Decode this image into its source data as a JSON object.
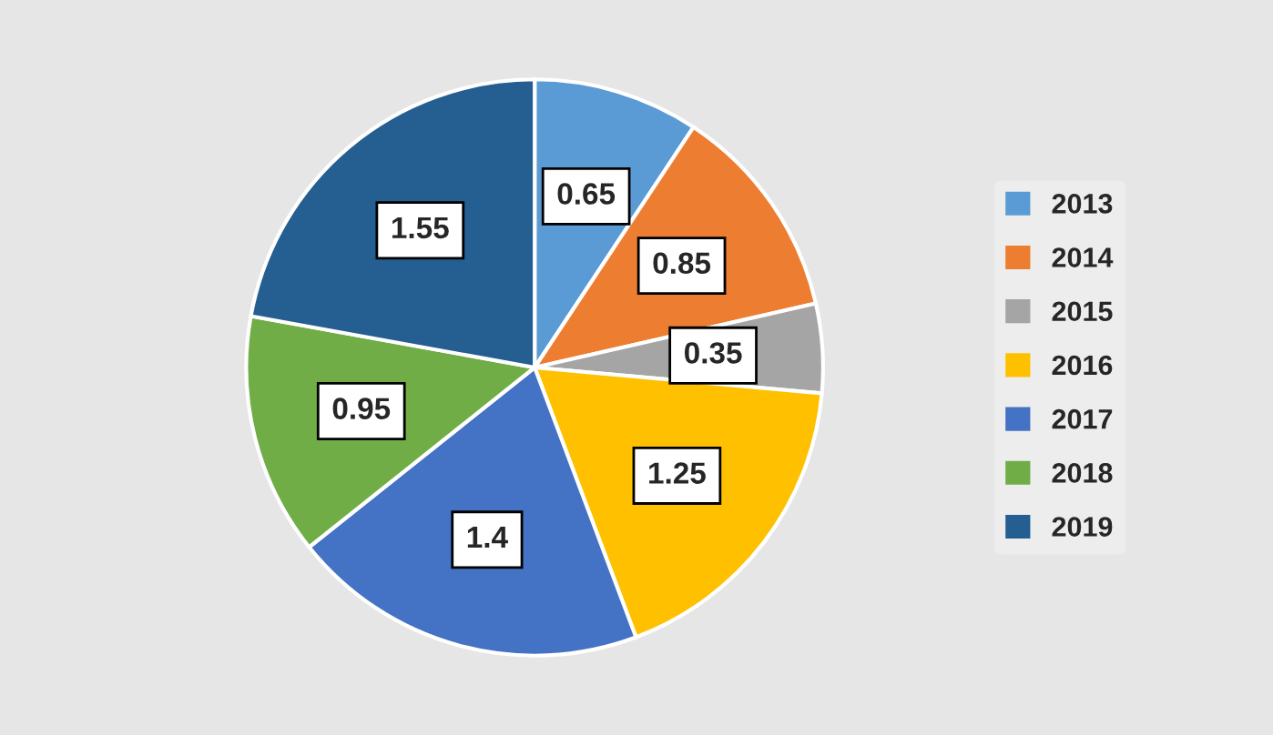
{
  "chart_data": {
    "type": "pie",
    "categories": [
      "2013",
      "2014",
      "2015",
      "2016",
      "2017",
      "2018",
      "2019"
    ],
    "values": [
      0.65,
      0.85,
      0.35,
      1.25,
      1.4,
      0.95,
      1.55
    ],
    "colors": [
      "#5b9bd5",
      "#ed7d31",
      "#a5a5a5",
      "#ffc000",
      "#4472c4",
      "#70ad47",
      "#255e91"
    ],
    "data_labels": true,
    "legend": "right"
  }
}
